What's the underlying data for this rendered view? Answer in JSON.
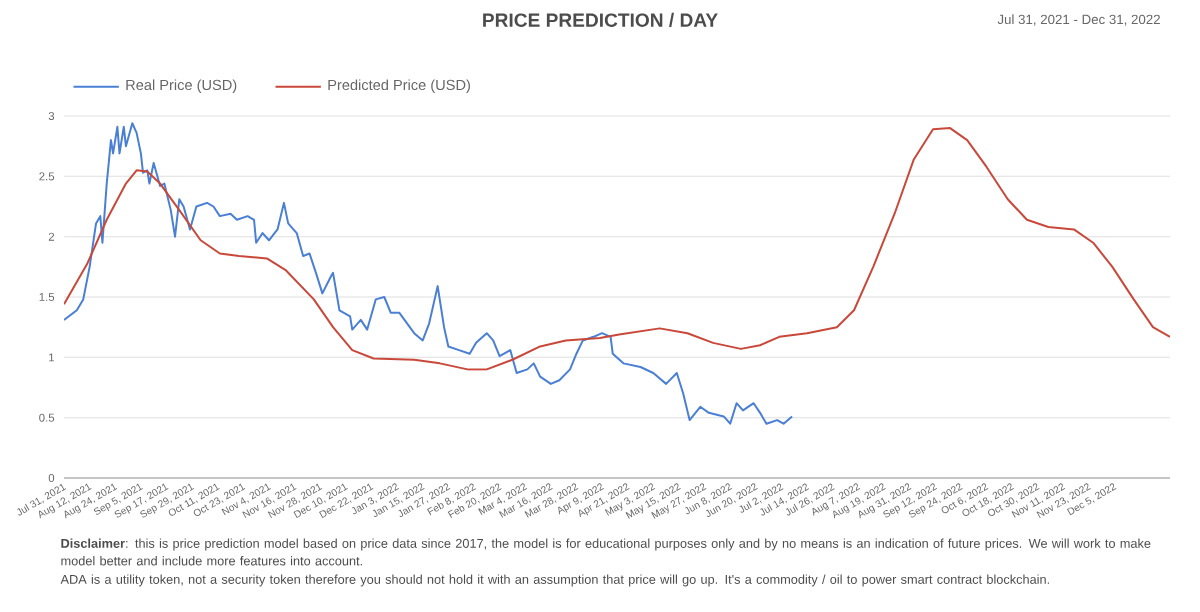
{
  "chart_data": {
    "type": "line",
    "title": "PRICE PREDICTION / DAY",
    "subtitle": "Jul 31, 2021 - Dec 31, 2022",
    "annotations": [
      "**Disclaimer**: this is price prediction model based on price data since 2017, the model is for educational purposes only and by no means is an indication of future prices. We will work to make model better and include more features into account.",
      "ADA is a utility token, not a security token therefore you should not hold it with an assumption that price will go up. It's a commodity / oil to power smart contract blockchain."
    ],
    "xlim": [
      "2021-07-31",
      "2022-12-31"
    ],
    "xticks": [
      {
        "value": "2021-07-31",
        "label": "Jul 31, 2021"
      },
      {
        "value": "2021-08-12",
        "label": "Aug 12, 2021"
      },
      {
        "value": "2021-08-24",
        "label": "Aug 24, 2021"
      },
      {
        "value": "2021-09-05",
        "label": "Sep 5, 2021"
      },
      {
        "value": "2021-09-17",
        "label": "Sep 17, 2021"
      },
      {
        "value": "2021-09-29",
        "label": "Sep 29, 2021"
      },
      {
        "value": "2021-10-11",
        "label": "Oct 11, 2021"
      },
      {
        "value": "2021-10-23",
        "label": "Oct 23, 2021"
      },
      {
        "value": "2021-11-04",
        "label": "Nov 4, 2021"
      },
      {
        "value": "2021-11-16",
        "label": "Nov 16, 2021"
      },
      {
        "value": "2021-11-28",
        "label": "Nov 28, 2021"
      },
      {
        "value": "2021-12-10",
        "label": "Dec 10, 2021"
      },
      {
        "value": "2021-12-22",
        "label": "Dec 22, 2021"
      },
      {
        "value": "2022-01-03",
        "label": "Jan 3, 2022"
      },
      {
        "value": "2022-01-15",
        "label": "Jan 15, 2022"
      },
      {
        "value": "2022-01-27",
        "label": "Jan 27, 2022"
      },
      {
        "value": "2022-02-08",
        "label": "Feb 8, 2022"
      },
      {
        "value": "2022-02-20",
        "label": "Feb 20, 2022"
      },
      {
        "value": "2022-03-04",
        "label": "Mar 4, 2022"
      },
      {
        "value": "2022-03-16",
        "label": "Mar 16, 2022"
      },
      {
        "value": "2022-03-28",
        "label": "Mar 28, 2022"
      },
      {
        "value": "2022-04-09",
        "label": "Apr 9, 2022"
      },
      {
        "value": "2022-04-21",
        "label": "Apr 21, 2022"
      },
      {
        "value": "2022-05-03",
        "label": "May 3, 2022"
      },
      {
        "value": "2022-05-15",
        "label": "May 15, 2022"
      },
      {
        "value": "2022-05-27",
        "label": "May 27, 2022"
      },
      {
        "value": "2022-06-08",
        "label": "Jun 8, 2022"
      },
      {
        "value": "2022-06-20",
        "label": "Jun 20, 2022"
      },
      {
        "value": "2022-07-02",
        "label": "Jul 2, 2022"
      },
      {
        "value": "2022-07-14",
        "label": "Jul 14, 2022"
      },
      {
        "value": "2022-07-26",
        "label": "Jul 26, 2022"
      },
      {
        "value": "2022-08-07",
        "label": "Aug 7, 2022"
      },
      {
        "value": "2022-08-19",
        "label": "Aug 19, 2022"
      },
      {
        "value": "2022-08-31",
        "label": "Aug 31, 2022"
      },
      {
        "value": "2022-09-12",
        "label": "Sep 12, 2022"
      },
      {
        "value": "2022-09-24",
        "label": "Sep 24, 2022"
      },
      {
        "value": "2022-10-06",
        "label": "Oct 6, 2022"
      },
      {
        "value": "2022-10-18",
        "label": "Oct 18, 2022"
      },
      {
        "value": "2022-10-30",
        "label": "Oct 30, 2022"
      },
      {
        "value": "2022-11-11",
        "label": "Nov 11, 2022"
      },
      {
        "value": "2022-11-23",
        "label": "Nov 23, 2022"
      },
      {
        "value": "2022-12-05",
        "label": "Dec 5, 2022"
      }
    ],
    "ylim": [
      0,
      3
    ],
    "yticks": [
      0,
      0.5,
      1,
      1.5,
      2,
      2.5,
      3
    ],
    "grid": "y",
    "legend": "top left",
    "series": [
      {
        "name": "Real Price (USD)",
        "color": "#4a7fd6",
        "x": [
          "2021-07-31",
          "2021-08-06",
          "2021-08-09",
          "2021-08-12",
          "2021-08-15",
          "2021-08-17",
          "2021-08-18",
          "2021-08-20",
          "2021-08-22",
          "2021-08-23",
          "2021-08-25",
          "2021-08-26",
          "2021-08-28",
          "2021-08-29",
          "2021-09-01",
          "2021-09-03",
          "2021-09-05",
          "2021-09-06",
          "2021-09-08",
          "2021-09-09",
          "2021-09-11",
          "2021-09-14",
          "2021-09-16",
          "2021-09-19",
          "2021-09-21",
          "2021-09-23",
          "2021-09-25",
          "2021-09-28",
          "2021-10-01",
          "2021-10-06",
          "2021-10-09",
          "2021-10-12",
          "2021-10-17",
          "2021-10-20",
          "2021-10-25",
          "2021-10-28",
          "2021-10-29",
          "2021-11-01",
          "2021-11-04",
          "2021-11-08",
          "2021-11-11",
          "2021-11-13",
          "2021-11-17",
          "2021-11-20",
          "2021-11-23",
          "2021-11-26",
          "2021-11-29",
          "2021-12-03",
          "2021-12-04",
          "2021-12-07",
          "2021-12-12",
          "2021-12-13",
          "2021-12-17",
          "2021-12-20",
          "2021-12-24",
          "2021-12-28",
          "2021-12-31",
          "2022-01-04",
          "2022-01-11",
          "2022-01-15",
          "2022-01-18",
          "2022-01-22",
          "2022-01-25",
          "2022-01-27",
          "2022-02-01",
          "2022-02-06",
          "2022-02-09",
          "2022-02-14",
          "2022-02-17",
          "2022-02-20",
          "2022-02-25",
          "2022-02-28",
          "2022-03-05",
          "2022-03-08",
          "2022-03-11",
          "2022-03-16",
          "2022-03-20",
          "2022-03-25",
          "2022-03-28",
          "2022-03-31",
          "2022-04-05",
          "2022-04-09",
          "2022-04-13",
          "2022-04-14",
          "2022-04-19",
          "2022-04-27",
          "2022-05-03",
          "2022-05-09",
          "2022-05-14",
          "2022-05-17",
          "2022-05-20",
          "2022-05-25",
          "2022-05-29",
          "2022-06-05",
          "2022-06-08",
          "2022-06-11",
          "2022-06-14",
          "2022-06-19",
          "2022-06-22",
          "2022-06-25",
          "2022-06-30",
          "2022-07-03",
          "2022-07-07"
        ],
        "values": [
          1.31,
          1.39,
          1.48,
          1.75,
          2.11,
          2.17,
          1.95,
          2.44,
          2.8,
          2.69,
          2.91,
          2.69,
          2.91,
          2.75,
          2.94,
          2.86,
          2.69,
          2.53,
          2.55,
          2.44,
          2.61,
          2.42,
          2.44,
          2.22,
          2.0,
          2.31,
          2.25,
          2.06,
          2.25,
          2.28,
          2.25,
          2.17,
          2.19,
          2.14,
          2.17,
          2.14,
          1.95,
          2.03,
          1.97,
          2.06,
          2.28,
          2.11,
          2.03,
          1.84,
          1.86,
          1.7,
          1.53,
          1.67,
          1.7,
          1.39,
          1.34,
          1.23,
          1.31,
          1.23,
          1.48,
          1.5,
          1.37,
          1.37,
          1.2,
          1.14,
          1.28,
          1.59,
          1.25,
          1.09,
          1.06,
          1.03,
          1.12,
          1.2,
          1.14,
          1.01,
          1.06,
          0.87,
          0.9,
          0.95,
          0.84,
          0.78,
          0.81,
          0.9,
          1.03,
          1.14,
          1.17,
          1.2,
          1.17,
          1.03,
          0.95,
          0.92,
          0.87,
          0.78,
          0.87,
          0.7,
          0.48,
          0.59,
          0.54,
          0.51,
          0.45,
          0.62,
          0.56,
          0.62,
          0.54,
          0.45,
          0.48,
          0.45,
          0.51
        ]
      },
      {
        "name": "Predicted Price (USD)",
        "color": "#c9483a",
        "x": [
          "2021-07-31",
          "2021-08-11",
          "2021-08-20",
          "2021-08-29",
          "2021-09-03",
          "2021-09-08",
          "2021-09-14",
          "2021-09-23",
          "2021-10-03",
          "2021-10-12",
          "2021-10-21",
          "2021-11-03",
          "2021-11-12",
          "2021-11-25",
          "2021-12-04",
          "2021-12-13",
          "2021-12-23",
          "2022-01-11",
          "2022-01-23",
          "2022-02-05",
          "2022-02-14",
          "2022-02-26",
          "2022-03-11",
          "2022-03-23",
          "2022-04-08",
          "2022-04-17",
          "2022-05-06",
          "2022-05-19",
          "2022-05-31",
          "2022-06-13",
          "2022-06-22",
          "2022-07-01",
          "2022-07-14",
          "2022-07-28",
          "2022-08-05",
          "2022-08-14",
          "2022-08-24",
          "2022-09-02",
          "2022-09-11",
          "2022-09-19",
          "2022-09-27",
          "2022-10-06",
          "2022-10-16",
          "2022-10-25",
          "2022-11-04",
          "2022-11-16",
          "2022-11-25",
          "2022-12-04",
          "2022-12-14",
          "2022-12-23",
          "2022-12-31"
        ],
        "values": [
          1.44,
          1.78,
          2.14,
          2.44,
          2.55,
          2.54,
          2.44,
          2.22,
          1.97,
          1.86,
          1.84,
          1.82,
          1.72,
          1.48,
          1.25,
          1.06,
          0.99,
          0.98,
          0.95,
          0.9,
          0.9,
          0.98,
          1.09,
          1.14,
          1.16,
          1.19,
          1.24,
          1.2,
          1.12,
          1.07,
          1.1,
          1.17,
          1.2,
          1.25,
          1.39,
          1.75,
          2.19,
          2.64,
          2.89,
          2.9,
          2.8,
          2.58,
          2.31,
          2.14,
          2.08,
          2.06,
          1.95,
          1.75,
          1.48,
          1.25,
          1.17
        ]
      }
    ]
  }
}
